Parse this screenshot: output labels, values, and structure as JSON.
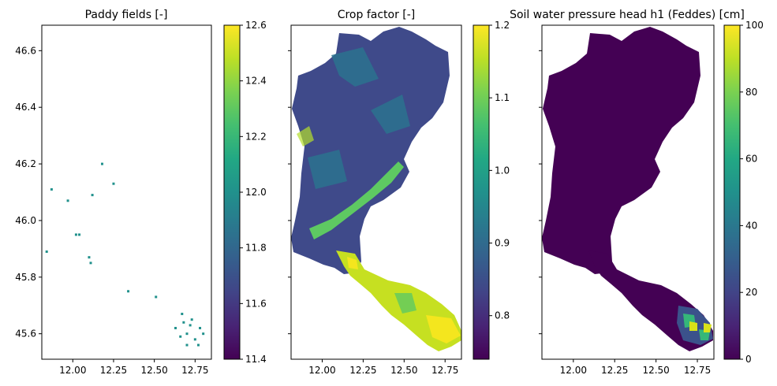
{
  "chart_data": [
    {
      "type": "heatmap",
      "title": "Paddy fields [-]",
      "xlabel": "",
      "ylabel": "",
      "xlim": [
        11.81,
        12.85
      ],
      "ylim": [
        45.51,
        46.69
      ],
      "xticks": [
        12.0,
        12.25,
        12.5,
        12.75
      ],
      "xtick_labels": [
        "12.00",
        "12.25",
        "12.50",
        "12.75"
      ],
      "yticks": [
        45.6,
        45.8,
        46.0,
        46.2,
        46.4,
        46.6
      ],
      "ytick_labels": [
        "45.6",
        "45.8",
        "46.0",
        "46.2",
        "46.4",
        "46.6"
      ],
      "colormap": "viridis",
      "colorbar": {
        "range": [
          11.4,
          12.6
        ],
        "ticks": [
          11.4,
          11.6,
          11.8,
          12.0,
          12.2,
          12.4,
          12.6
        ],
        "tick_labels": [
          "11.4",
          "11.6",
          "11.8",
          "12.0",
          "12.2",
          "12.4",
          "12.6"
        ]
      },
      "value_summary": "Sparse isolated cells with value about 12.0; dense cluster near 12.70, 45.60",
      "points": [
        [
          11.84,
          45.89
        ],
        [
          11.87,
          46.11
        ],
        [
          11.97,
          46.07
        ],
        [
          12.02,
          45.95
        ],
        [
          12.04,
          45.95
        ],
        [
          12.1,
          45.87
        ],
        [
          12.11,
          45.85
        ],
        [
          12.12,
          46.09
        ],
        [
          12.18,
          46.2
        ],
        [
          12.25,
          46.13
        ],
        [
          12.34,
          45.75
        ],
        [
          12.51,
          45.73
        ],
        [
          12.63,
          45.62
        ],
        [
          12.67,
          45.67
        ],
        [
          12.7,
          45.6
        ],
        [
          12.72,
          45.63
        ],
        [
          12.75,
          45.58
        ],
        [
          12.78,
          45.62
        ],
        [
          12.8,
          45.6
        ],
        [
          12.7,
          45.56
        ],
        [
          12.77,
          45.56
        ],
        [
          12.68,
          45.64
        ],
        [
          12.73,
          45.65
        ],
        [
          12.66,
          45.59
        ]
      ]
    },
    {
      "type": "heatmap",
      "title": "Crop factor [-]",
      "xlabel": "",
      "ylabel": "",
      "xlim": [
        11.81,
        12.85
      ],
      "ylim": [
        45.51,
        46.69
      ],
      "xticks": [
        12.0,
        12.25,
        12.5,
        12.75
      ],
      "xtick_labels": [
        "12.00",
        "12.25",
        "12.50",
        "12.75"
      ],
      "yticks": [
        45.6,
        45.8,
        46.0,
        46.2,
        46.4,
        46.6
      ],
      "colormap": "viridis",
      "colorbar": {
        "range": [
          0.74,
          1.2
        ],
        "ticks": [
          0.8,
          0.9,
          1.0,
          1.1,
          1.2
        ],
        "tick_labels": [
          "0.8",
          "0.9",
          "1.0",
          "1.1",
          "1.2"
        ]
      },
      "value_summary": "Mountain area mostly 0.80-0.90 with a brighter valley band; southern plain 1.10-1.20"
    },
    {
      "type": "heatmap",
      "title": "Soil water pressure head h1 (Feddes) [cm]",
      "xlabel": "",
      "ylabel": "",
      "xlim": [
        11.81,
        12.85
      ],
      "ylim": [
        45.51,
        46.69
      ],
      "xticks": [
        12.0,
        12.25,
        12.5,
        12.75
      ],
      "xtick_labels": [
        "12.00",
        "12.25",
        "12.50",
        "12.75"
      ],
      "yticks": [
        45.6,
        45.8,
        46.0,
        46.2,
        46.4,
        46.6
      ],
      "colormap": "viridis",
      "colorbar": {
        "range": [
          0,
          100
        ],
        "ticks": [
          0,
          20,
          40,
          60,
          80,
          100
        ],
        "tick_labels": [
          "0",
          "20",
          "40",
          "60",
          "80",
          "100"
        ]
      },
      "value_summary": "Almost everywhere 0; patch of 20-100 values near 12.75, 45.60"
    }
  ]
}
